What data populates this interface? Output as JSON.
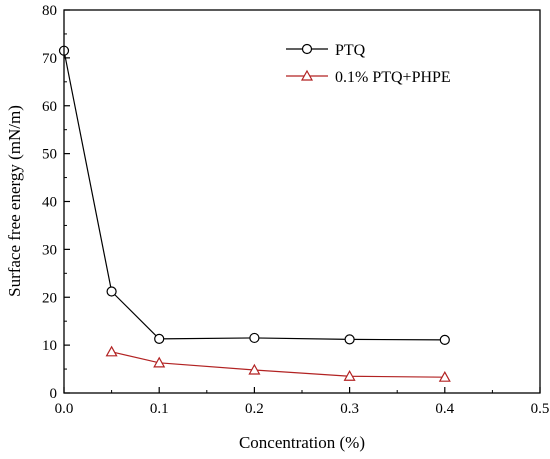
{
  "chart_data": {
    "type": "line",
    "xlabel": "Concentration (%)",
    "ylabel": "Surface free energy (mN/m)",
    "xlim": [
      0,
      0.5
    ],
    "ylim": [
      0,
      80
    ],
    "xticks": [
      "0.0",
      "0.1",
      "0.2",
      "0.3",
      "0.4",
      "0.5"
    ],
    "yticks": [
      "0",
      "10",
      "20",
      "30",
      "40",
      "50",
      "60",
      "70",
      "80"
    ],
    "grid": false,
    "legend_position": "top-right",
    "series": [
      {
        "name": "PTQ",
        "marker": "circle",
        "color": "#000000",
        "x": [
          0.0,
          0.05,
          0.1,
          0.2,
          0.3,
          0.4
        ],
        "y": [
          71.5,
          21.2,
          11.3,
          11.5,
          11.2,
          11.1
        ]
      },
      {
        "name": "0.1% PTQ+PHPE",
        "marker": "triangle",
        "color": "#b22222",
        "x": [
          0.05,
          0.1,
          0.2,
          0.3,
          0.4
        ],
        "y": [
          8.6,
          6.3,
          4.8,
          3.5,
          3.3
        ]
      }
    ]
  }
}
